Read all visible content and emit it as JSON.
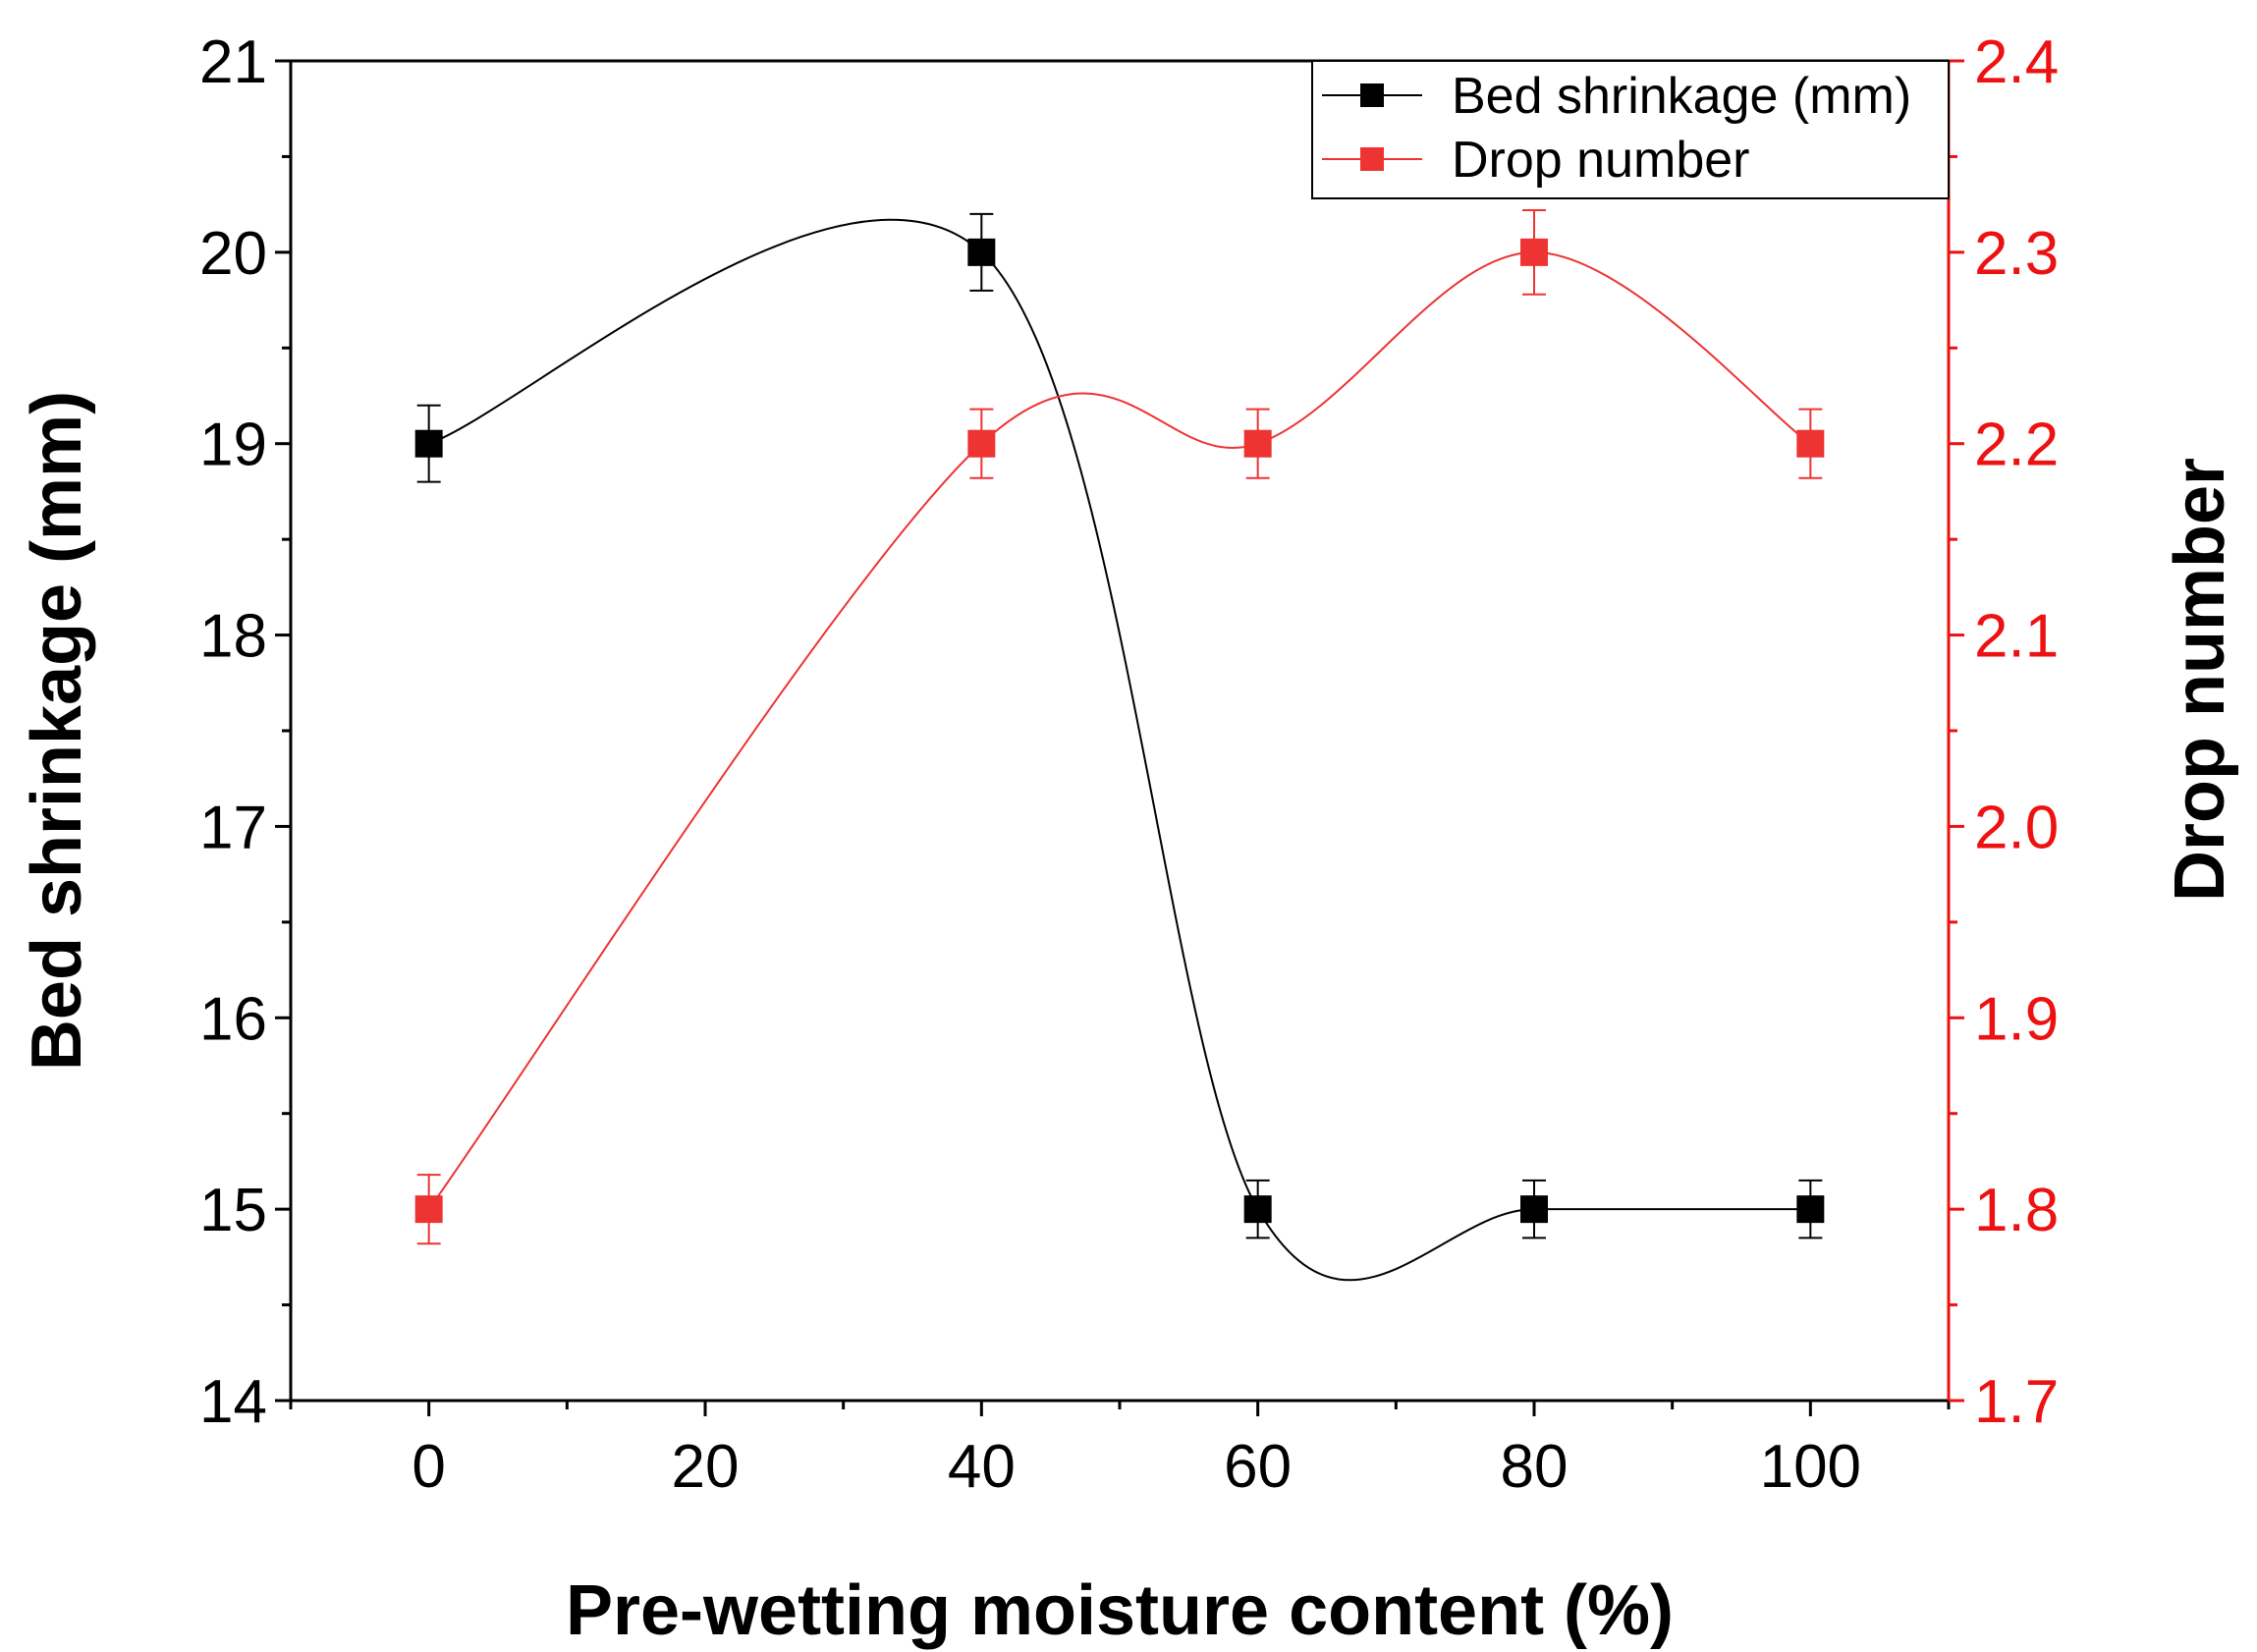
{
  "chart_data": {
    "type": "line",
    "title": "",
    "xlabel": "Pre-wetting moisture content (%)",
    "ylabel_left": "Bed shrinkage (mm)",
    "ylabel_right": "Drop number",
    "xlim": [
      -10,
      110
    ],
    "ylim_left": [
      14,
      21
    ],
    "ylim_right": [
      1.7,
      2.4
    ],
    "x_ticks": [
      0,
      20,
      40,
      60,
      80,
      100
    ],
    "x_tick_labels": [
      "0",
      "20",
      "40",
      "60",
      "80",
      "100"
    ],
    "y_left_ticks": [
      14,
      15,
      16,
      17,
      18,
      19,
      20,
      21
    ],
    "y_left_tick_labels": [
      "14",
      "15",
      "16",
      "17",
      "18",
      "19",
      "20",
      "21"
    ],
    "y_right_ticks": [
      1.7,
      1.8,
      1.9,
      2.0,
      2.1,
      2.2,
      2.3,
      2.4
    ],
    "y_right_tick_labels": [
      "1.7",
      "1.8",
      "1.9",
      "2.0",
      "2.1",
      "2.2",
      "2.3",
      "2.4"
    ],
    "legend_position": "top-right",
    "colors": {
      "series1": "#000000",
      "series2": "#ee3333",
      "axis_left": "#000000",
      "axis_right": "#ee1111"
    },
    "series": [
      {
        "name": "Bed shrinkage (mm)",
        "axis": "left",
        "x": [
          0,
          40,
          60,
          80,
          100
        ],
        "values": [
          19,
          20,
          15,
          15,
          15
        ],
        "errors": [
          0.2,
          0.2,
          0.15,
          0.15,
          0.15
        ]
      },
      {
        "name": "Drop number",
        "axis": "right",
        "x": [
          0,
          40,
          60,
          80,
          100
        ],
        "values": [
          1.8,
          2.2,
          2.2,
          2.3,
          2.2
        ],
        "errors": [
          0.018,
          0.018,
          0.018,
          0.022,
          0.018
        ]
      }
    ]
  }
}
